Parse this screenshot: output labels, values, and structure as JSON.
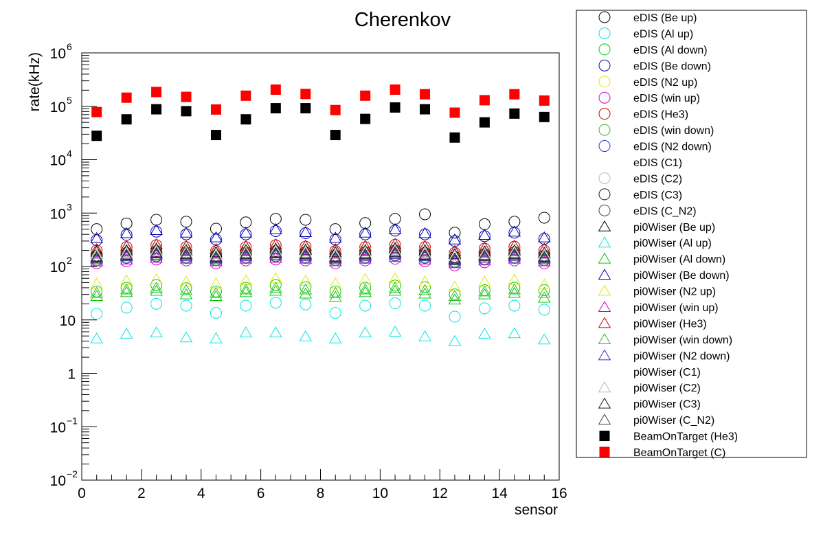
{
  "chart_data": {
    "type": "scatter",
    "title": "Cherenkov",
    "xlabel": "sensor",
    "ylabel": "rate(kHz)",
    "xlim": [
      0,
      16
    ],
    "ylim": [
      0.01,
      1000000
    ],
    "yscale": "log",
    "grid": false,
    "legend_position": "right",
    "x_ticks": [
      {
        "value": 0,
        "label": "0"
      },
      {
        "value": 2,
        "label": "2"
      },
      {
        "value": 4,
        "label": "4"
      },
      {
        "value": 6,
        "label": "6"
      },
      {
        "value": 8,
        "label": "8"
      },
      {
        "value": 10,
        "label": "10"
      },
      {
        "value": 12,
        "label": "12"
      },
      {
        "value": 14,
        "label": "14"
      },
      {
        "value": 16,
        "label": "16"
      }
    ],
    "y_ticks": [
      {
        "value": 0.01,
        "base": "10",
        "exp": "−2"
      },
      {
        "value": 0.1,
        "base": "10",
        "exp": "−1"
      },
      {
        "value": 1,
        "base": "1",
        "exp": ""
      },
      {
        "value": 10,
        "base": "10",
        "exp": ""
      },
      {
        "value": 100,
        "base": "10",
        "exp": "2"
      },
      {
        "value": 1000,
        "base": "10",
        "exp": "3"
      },
      {
        "value": 10000,
        "base": "10",
        "exp": "4"
      },
      {
        "value": 100000,
        "base": "10",
        "exp": "5"
      },
      {
        "value": 1000000,
        "base": "10",
        "exp": "6"
      }
    ],
    "x": [
      0.5,
      1.5,
      2.5,
      3.5,
      4.5,
      5.5,
      6.5,
      7.5,
      8.5,
      9.5,
      10.5,
      11.5,
      12.5,
      13.5,
      14.5,
      15.5
    ],
    "series": [
      {
        "name": "eDIS (Be up)",
        "marker": "circle",
        "color": "#000000",
        "values": [
          500,
          640,
          750,
          690,
          510,
          670,
          780,
          750,
          500,
          650,
          780,
          950,
          430,
          620,
          690,
          820
        ]
      },
      {
        "name": "eDIS (Al up)",
        "marker": "circle",
        "color": "#00e5e5",
        "values": [
          13,
          17,
          20,
          18.5,
          13.5,
          18.5,
          21,
          19.5,
          13.5,
          18.5,
          20.5,
          18.5,
          11.5,
          16.5,
          18.5,
          15.5
        ]
      },
      {
        "name": "eDIS (Al down)",
        "marker": "circle",
        "color": "#00cc00",
        "values": [
          34,
          40,
          45,
          39,
          34,
          40,
          45,
          41,
          34,
          40,
          44,
          41,
          30,
          36,
          40,
          36
        ]
      },
      {
        "name": "eDIS (Be down)",
        "marker": "circle",
        "color": "#0000b4",
        "values": [
          310,
          390,
          450,
          400,
          320,
          400,
          460,
          420,
          320,
          400,
          470,
          400,
          300,
          370,
          430,
          330
        ]
      },
      {
        "name": "eDIS (N2 up)",
        "marker": "circle",
        "color": "#e5e500",
        "values": [
          155,
          170,
          185,
          170,
          150,
          170,
          185,
          175,
          150,
          170,
          190,
          170,
          140,
          160,
          175,
          150
        ]
      },
      {
        "name": "eDIS (win up)",
        "marker": "circle",
        "color": "#cc00cc",
        "values": [
          115,
          125,
          135,
          130,
          115,
          130,
          135,
          130,
          115,
          130,
          140,
          125,
          105,
          120,
          130,
          115
        ]
      },
      {
        "name": "eDIS (He3)",
        "marker": "circle",
        "color": "#cc0000",
        "values": [
          200,
          230,
          250,
          230,
          195,
          230,
          250,
          235,
          195,
          230,
          255,
          230,
          180,
          215,
          235,
          200
        ]
      },
      {
        "name": "eDIS (win down)",
        "marker": "circle",
        "color": "#33bb33",
        "values": [
          135,
          150,
          160,
          150,
          135,
          150,
          160,
          150,
          135,
          150,
          165,
          150,
          125,
          140,
          150,
          135
        ]
      },
      {
        "name": "eDIS (N2 down)",
        "marker": "circle",
        "color": "#3333cc",
        "values": [
          130,
          145,
          155,
          145,
          130,
          145,
          155,
          145,
          130,
          145,
          160,
          145,
          120,
          135,
          145,
          130
        ]
      },
      {
        "name": "eDIS (C1)",
        "marker": "circle",
        "color": "#ffffff",
        "values": [
          175,
          195,
          215,
          200,
          175,
          200,
          215,
          205,
          175,
          200,
          220,
          200,
          160,
          185,
          200,
          175
        ]
      },
      {
        "name": "eDIS (C2)",
        "marker": "circle",
        "color": "#b8b8b8",
        "values": [
          180,
          200,
          220,
          205,
          180,
          205,
          220,
          210,
          180,
          205,
          225,
          205,
          165,
          190,
          205,
          180
        ]
      },
      {
        "name": "eDIS (C3)",
        "marker": "circle",
        "color": "#1a1a1a",
        "values": [
          160,
          180,
          195,
          185,
          160,
          185,
          195,
          185,
          160,
          185,
          200,
          180,
          150,
          170,
          185,
          160
        ]
      },
      {
        "name": "eDIS (C_N2)",
        "marker": "circle",
        "color": "#444444",
        "values": [
          150,
          170,
          185,
          175,
          150,
          175,
          185,
          175,
          150,
          175,
          190,
          170,
          140,
          160,
          175,
          150
        ]
      },
      {
        "name": "pi0Wiser (Be up)",
        "marker": "triangle",
        "color": "#000000",
        "values": [
          190,
          200,
          215,
          200,
          185,
          200,
          215,
          205,
          185,
          200,
          220,
          200,
          170,
          190,
          200,
          180
        ]
      },
      {
        "name": "pi0Wiser (Al up)",
        "marker": "triangle",
        "color": "#00e5e5",
        "values": [
          4.5,
          5.5,
          5.8,
          4.7,
          4.5,
          5.8,
          5.8,
          4.9,
          4.5,
          5.8,
          6,
          4.9,
          4,
          5.5,
          5.6,
          4.3
        ]
      },
      {
        "name": "pi0Wiser (Al down)",
        "marker": "triangle",
        "color": "#00cc00",
        "values": [
          28,
          33,
          35,
          30,
          28,
          33,
          35,
          31,
          27,
          33,
          35,
          31,
          24,
          30,
          32,
          26
        ]
      },
      {
        "name": "pi0Wiser (Be down)",
        "marker": "triangle",
        "color": "#0000b4",
        "values": [
          340,
          420,
          480,
          430,
          350,
          430,
          500,
          440,
          345,
          430,
          500,
          420,
          320,
          390,
          450,
          350
        ]
      },
      {
        "name": "pi0Wiser (N2 up)",
        "marker": "triangle",
        "color": "#e5e500",
        "values": [
          48,
          55,
          58,
          52,
          48,
          55,
          60,
          54,
          48,
          58,
          60,
          52,
          42,
          52,
          56,
          46
        ]
      },
      {
        "name": "pi0Wiser (win up)",
        "marker": "triangle",
        "color": "#cc00cc",
        "values": [
          125,
          135,
          145,
          140,
          125,
          140,
          145,
          140,
          125,
          140,
          150,
          135,
          115,
          130,
          140,
          125
        ]
      },
      {
        "name": "pi0Wiser (He3)",
        "marker": "triangle",
        "color": "#cc0000",
        "values": [
          210,
          240,
          260,
          240,
          210,
          240,
          260,
          245,
          210,
          240,
          265,
          240,
          195,
          225,
          245,
          215
        ]
      },
      {
        "name": "pi0Wiser (win down)",
        "marker": "triangle",
        "color": "#33bb33",
        "values": [
          32,
          37,
          40,
          36,
          32,
          37,
          40,
          37,
          32,
          37,
          40,
          36,
          28,
          34,
          37,
          32
        ]
      },
      {
        "name": "pi0Wiser (N2 down)",
        "marker": "triangle",
        "color": "#3333cc",
        "values": [
          140,
          155,
          165,
          155,
          140,
          155,
          165,
          155,
          140,
          155,
          170,
          155,
          130,
          145,
          155,
          140
        ]
      },
      {
        "name": "pi0Wiser (C1)",
        "marker": "triangle",
        "color": "#ffffff",
        "values": [
          165,
          180,
          195,
          185,
          165,
          185,
          195,
          185,
          165,
          185,
          200,
          180,
          155,
          170,
          185,
          165
        ]
      },
      {
        "name": "pi0Wiser (C2)",
        "marker": "triangle",
        "color": "#b8b8b8",
        "values": [
          170,
          185,
          200,
          190,
          170,
          190,
          200,
          190,
          170,
          190,
          205,
          185,
          160,
          175,
          190,
          170
        ]
      },
      {
        "name": "pi0Wiser (C3)",
        "marker": "triangle",
        "color": "#1a1a1a",
        "values": [
          150,
          165,
          180,
          170,
          150,
          170,
          180,
          170,
          150,
          170,
          185,
          165,
          140,
          160,
          170,
          150
        ]
      },
      {
        "name": "pi0Wiser (C_N2)",
        "marker": "triangle",
        "color": "#444444",
        "values": [
          145,
          160,
          175,
          165,
          145,
          165,
          175,
          165,
          145,
          165,
          180,
          160,
          135,
          155,
          165,
          145
        ]
      },
      {
        "name": "BeamOnTarget (He3)",
        "marker": "square",
        "color": "#000000",
        "values": [
          28000,
          57000,
          88000,
          81000,
          29000,
          57000,
          92000,
          92000,
          29000,
          58000,
          95000,
          88000,
          26000,
          50000,
          73000,
          63000
        ]
      },
      {
        "name": "BeamOnTarget (C)",
        "marker": "square",
        "color": "#ff0000",
        "values": [
          78000,
          145000,
          185000,
          150000,
          87000,
          158000,
          205000,
          170000,
          85000,
          158000,
          205000,
          168000,
          76000,
          130000,
          168000,
          128000
        ]
      }
    ]
  }
}
